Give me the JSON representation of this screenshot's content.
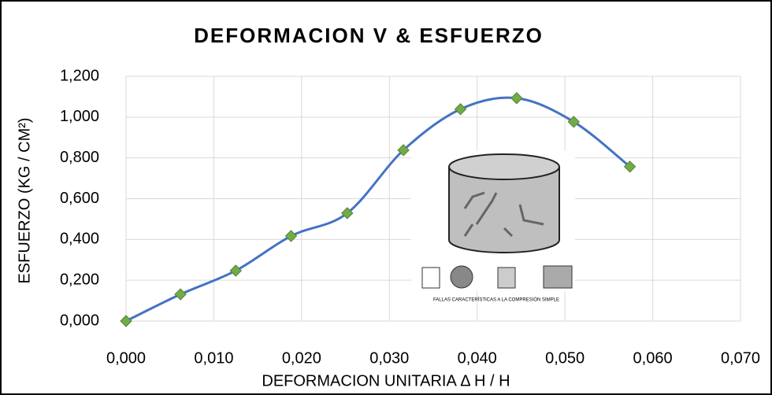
{
  "chart_data": {
    "type": "scatter_smooth",
    "title": "DEFORMACION V & ESFUERZO",
    "x_label": "DEFORMACION UNITARIA    Δ H / H",
    "y_label": "ESFUERZO   (KG / CM²)",
    "figure_caption": "FALLAS CARACTERÍSTICAS A LA COMPRESIÓN SIMPLE",
    "series": [
      {
        "color": "#4472c4",
        "marker_color": "#70ad47",
        "x": [
          0,
          0.0062,
          0.0125,
          0.0188,
          0.0252,
          0.0316,
          0.0381,
          0.0445,
          0.051,
          0.0574
        ],
        "values": [
          0,
          0.131,
          0.247,
          0.417,
          0.529,
          0.838,
          1.039,
          1.093,
          0.977,
          0.757
        ]
      }
    ],
    "xlim": [
      0,
      0.07
    ],
    "xticks": [
      {
        "value": 0,
        "label": "0,000"
      },
      {
        "value": 0.01,
        "label": "0,010"
      },
      {
        "value": 0.02,
        "label": "0,020"
      },
      {
        "value": 0.03,
        "label": "0,030"
      },
      {
        "value": 0.04,
        "label": "0,040"
      },
      {
        "value": 0.05,
        "label": "0,050"
      },
      {
        "value": 0.06,
        "label": "0,060"
      },
      {
        "value": 0.07,
        "label": "0,070"
      }
    ],
    "ylim": [
      0,
      1.2
    ],
    "yticks": [
      {
        "value": 0,
        "label": "0,000"
      },
      {
        "value": 0.2,
        "label": "0,200"
      },
      {
        "value": 0.4,
        "label": "0,400"
      },
      {
        "value": 0.6,
        "label": "0,600"
      },
      {
        "value": 0.8,
        "label": "0,800"
      },
      {
        "value": 1.0,
        "label": "1,000"
      },
      {
        "value": 1.2,
        "label": "1,200"
      }
    ],
    "grid": true
  }
}
